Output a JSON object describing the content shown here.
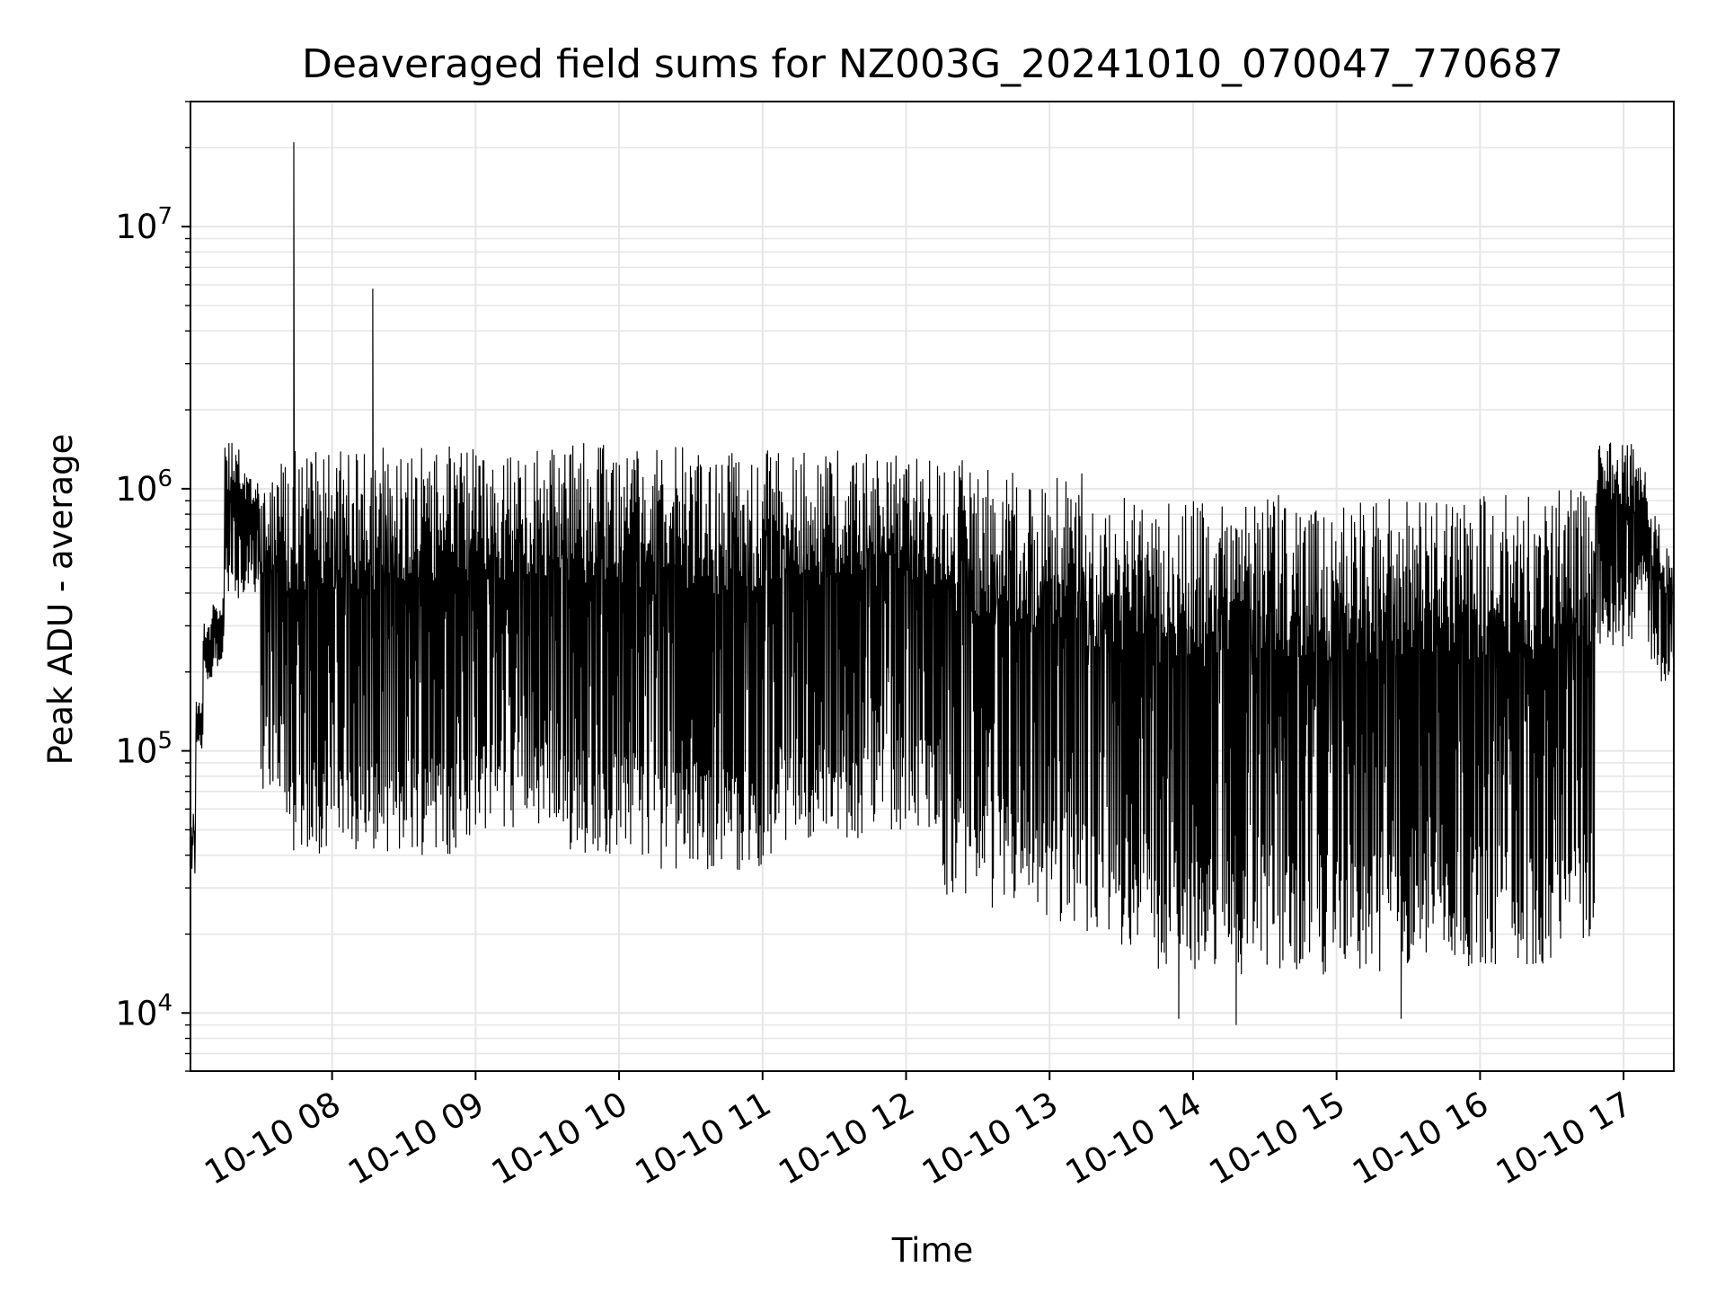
{
  "chart_data": {
    "type": "line",
    "title": "Deaveraged field sums for NZ003G_20241010_070047_770687",
    "xlabel": "Time",
    "ylabel": "Peak ADU - average",
    "yscale": "log",
    "grid": true,
    "line_color": "#000000",
    "grid_color": "#e6e6e6",
    "x_range": [
      "2024-10-10 07:00:47",
      "2024-10-10 17:21:00"
    ],
    "ylim": [
      6000,
      30000000
    ],
    "x_ticks": [
      {
        "time": "2024-10-10 08:00",
        "label": "10-10 08"
      },
      {
        "time": "2024-10-10 09:00",
        "label": "10-10 09"
      },
      {
        "time": "2024-10-10 10:00",
        "label": "10-10 10"
      },
      {
        "time": "2024-10-10 11:00",
        "label": "10-10 11"
      },
      {
        "time": "2024-10-10 12:00",
        "label": "10-10 12"
      },
      {
        "time": "2024-10-10 13:00",
        "label": "10-10 13"
      },
      {
        "time": "2024-10-10 14:00",
        "label": "10-10 14"
      },
      {
        "time": "2024-10-10 15:00",
        "label": "10-10 15"
      },
      {
        "time": "2024-10-10 16:00",
        "label": "10-10 16"
      },
      {
        "time": "2024-10-10 17:00",
        "label": "10-10 17"
      }
    ],
    "y_ticks": [
      {
        "value": 10000,
        "base": "10",
        "exp": "4"
      },
      {
        "value": 100000,
        "base": "10",
        "exp": "5"
      },
      {
        "value": 1000000,
        "base": "10",
        "exp": "6"
      },
      {
        "value": 10000000,
        "base": "10",
        "exp": "7"
      }
    ],
    "series": [
      {
        "segments": [
          {
            "start": "2024-10-10 07:00:47",
            "end": "2024-10-10 07:03",
            "low": 30000,
            "high": 60000
          },
          {
            "start": "2024-10-10 07:03",
            "end": "2024-10-10 07:06",
            "low": 100000,
            "high": 160000
          },
          {
            "start": "2024-10-10 07:06",
            "end": "2024-10-10 07:10",
            "low": 180000,
            "high": 320000
          },
          {
            "start": "2024-10-10 07:10",
            "end": "2024-10-10 07:15",
            "low": 200000,
            "high": 400000
          },
          {
            "start": "2024-10-10 07:15",
            "end": "2024-10-10 07:22",
            "low": 350000,
            "high": 1500000
          },
          {
            "start": "2024-10-10 07:22",
            "end": "2024-10-10 07:30",
            "low": 400000,
            "high": 1200000
          },
          {
            "start": "2024-10-10 07:30",
            "end": "2024-10-10 07:40",
            "low": 70000,
            "high": 1300000
          },
          {
            "start": "2024-10-10 07:40",
            "end": "2024-10-10 08:15",
            "low": 40000,
            "high": 1400000
          },
          {
            "start": "2024-10-10 08:15",
            "end": "2024-10-10 09:00",
            "low": 40000,
            "high": 1450000
          },
          {
            "start": "2024-10-10 09:00",
            "end": "2024-10-10 09:30",
            "low": 50000,
            "high": 1400000
          },
          {
            "start": "2024-10-10 09:30",
            "end": "2024-10-10 10:15",
            "low": 40000,
            "high": 1500000
          },
          {
            "start": "2024-10-10 10:15",
            "end": "2024-10-10 11:05",
            "low": 35000,
            "high": 1450000
          },
          {
            "start": "2024-10-10 11:05",
            "end": "2024-10-10 11:45",
            "low": 45000,
            "high": 1400000
          },
          {
            "start": "2024-10-10 11:45",
            "end": "2024-10-10 12:15",
            "low": 50000,
            "high": 1350000
          },
          {
            "start": "2024-10-10 12:15",
            "end": "2024-10-10 12:45",
            "low": 25000,
            "high": 1300000
          },
          {
            "start": "2024-10-10 12:45",
            "end": "2024-10-10 13:15",
            "low": 22000,
            "high": 1150000
          },
          {
            "start": "2024-10-10 13:15",
            "end": "2024-10-10 13:45",
            "low": 18000,
            "high": 950000
          },
          {
            "start": "2024-10-10 13:45",
            "end": "2024-10-10 14:30",
            "low": 14000,
            "high": 900000
          },
          {
            "start": "2024-10-10 14:30",
            "end": "2024-10-10 15:30",
            "low": 14000,
            "high": 950000
          },
          {
            "start": "2024-10-10 15:30",
            "end": "2024-10-10 16:30",
            "low": 15000,
            "high": 950000
          },
          {
            "start": "2024-10-10 16:30",
            "end": "2024-10-10 16:48",
            "low": 18000,
            "high": 1000000
          },
          {
            "start": "2024-10-10 16:48",
            "end": "2024-10-10 17:05",
            "low": 250000,
            "high": 1500000
          },
          {
            "start": "2024-10-10 17:05",
            "end": "2024-10-10 17:10",
            "low": 400000,
            "high": 1300000
          },
          {
            "start": "2024-10-10 17:10",
            "end": "2024-10-10 17:15",
            "low": 200000,
            "high": 800000
          },
          {
            "start": "2024-10-10 17:15",
            "end": "2024-10-10 17:21",
            "low": 180000,
            "high": 600000
          }
        ],
        "spikes": [
          {
            "time": "2024-10-10 07:44",
            "value": 21000000
          },
          {
            "time": "2024-10-10 08:17",
            "value": 5800000
          },
          {
            "time": "2024-10-10 13:54",
            "value": 9500
          },
          {
            "time": "2024-10-10 14:18",
            "value": 9000
          },
          {
            "time": "2024-10-10 15:27",
            "value": 9500
          }
        ]
      }
    ]
  }
}
